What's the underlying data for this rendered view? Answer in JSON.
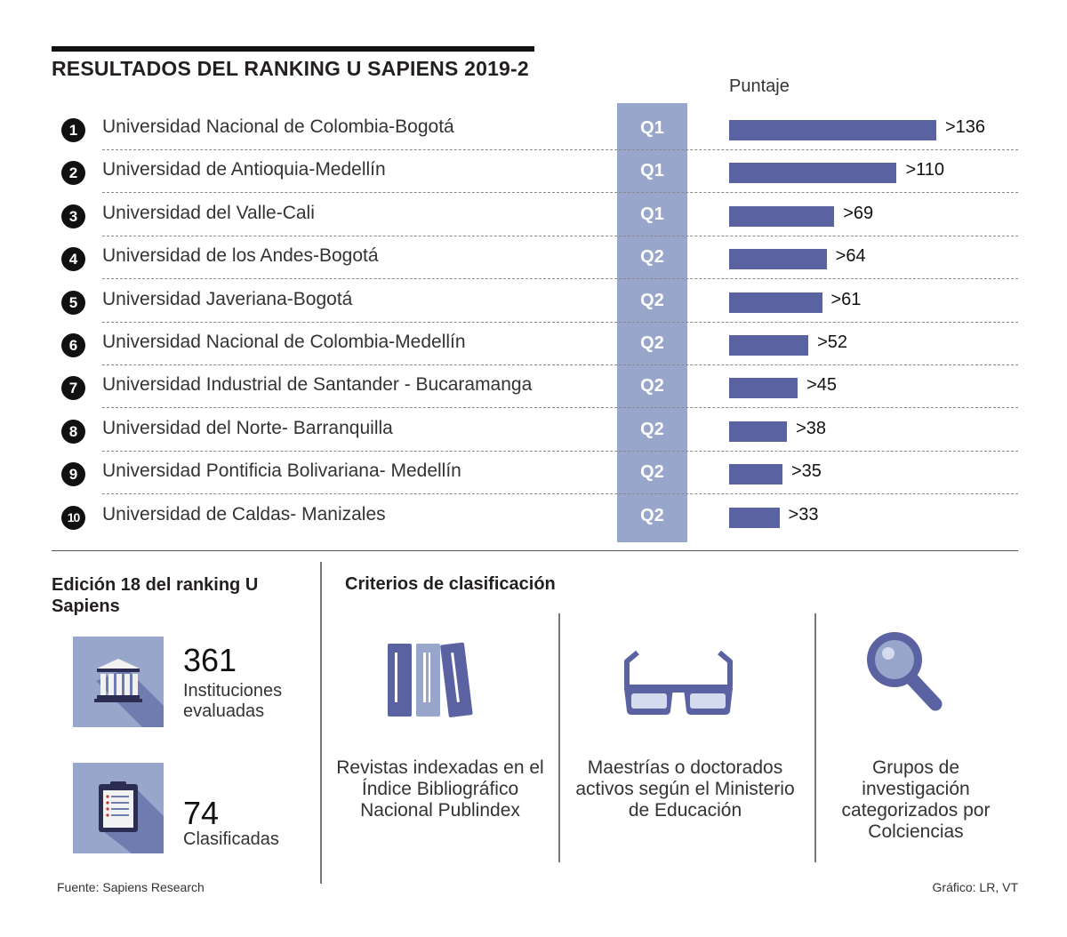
{
  "header": {
    "title": "RESULTADOS DEL RANKING U SAPIENS 2019-2",
    "puntaje_label": "Puntaje"
  },
  "colors": {
    "bar": "#5b62a2",
    "quartile_column": "#98a6cb",
    "tile": "#98a6cb",
    "tile_shadow": "#6e7cb0"
  },
  "chart_data": {
    "type": "bar",
    "orientation": "horizontal",
    "title": "RESULTADOS DEL RANKING U SAPIENS 2019-2",
    "xlabel": "Puntaje",
    "ylabel": "",
    "xlim": [
      0,
      136
    ],
    "categories": [
      "Universidad Nacional de Colombia-Bogotá",
      "Universidad de Antioquia-Medellín",
      "Universidad del Valle-Cali",
      "Universidad de los Andes-Bogotá",
      "Universidad Javeriana-Bogotá",
      "Universidad Nacional de Colombia-Medellín",
      "Universidad Industrial de Santander - Bucaramanga",
      "Universidad del Norte- Barranquilla",
      "Universidad Pontificia Bolivariana- Medellín",
      "Universidad de Caldas- Manizales"
    ],
    "ranks": [
      "1",
      "2",
      "3",
      "4",
      "5",
      "6",
      "7",
      "8",
      "9",
      "10"
    ],
    "quartiles": [
      "Q1",
      "Q1",
      "Q1",
      "Q2",
      "Q2",
      "Q2",
      "Q2",
      "Q2",
      "Q2",
      "Q2"
    ],
    "values": [
      136,
      110,
      69,
      64,
      61,
      52,
      45,
      38,
      35,
      33
    ],
    "value_labels": [
      ">136",
      ">110",
      ">69",
      ">64",
      ">61",
      ">52",
      ">45",
      ">38",
      ">35",
      ">33"
    ]
  },
  "edition": {
    "title": "Edición 18 del ranking U Sapiens",
    "stats": [
      {
        "number": "361",
        "label": "Instituciones evaluadas",
        "icon": "institution-building-icon"
      },
      {
        "number": "74",
        "label": "Clasificadas",
        "icon": "clipboard-icon"
      }
    ]
  },
  "criteria": {
    "title": "Criterios de clasificación",
    "items": [
      {
        "text": "Revistas indexadas en el Índice Bibliográfico Nacional Publindex",
        "icon": "books-icon"
      },
      {
        "text": "Maestrías o doctorados activos según el Ministerio de Educación",
        "icon": "glasses-icon"
      },
      {
        "text": "Grupos de investigación categorizados por Colciencias",
        "icon": "magnifier-icon"
      }
    ]
  },
  "footer": {
    "source": "Fuente: Sapiens Research",
    "credit": "Gráfico: LR, VT"
  }
}
